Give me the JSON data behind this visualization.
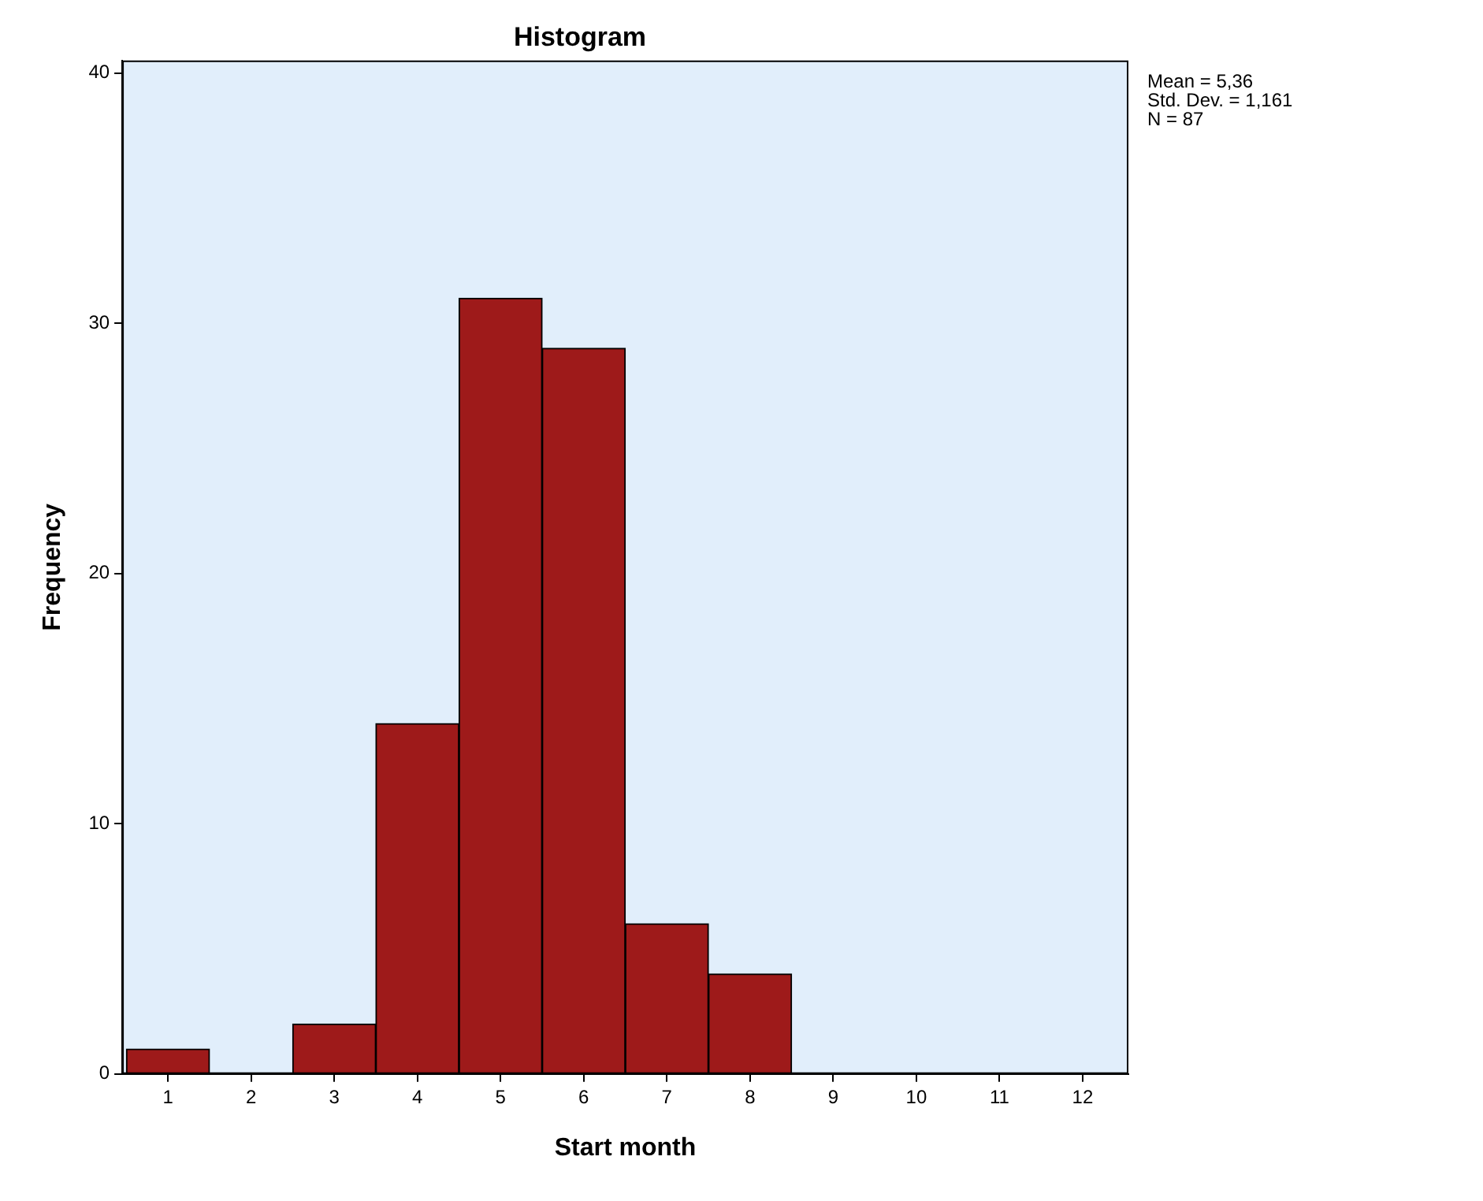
{
  "chart_data": {
    "type": "histogram",
    "title": "Histogram",
    "xlabel": "Start month",
    "ylabel": "Frequency",
    "bins": [
      0.5,
      1.5,
      2.5,
      3.5,
      4.5,
      5.5,
      6.5,
      7.5,
      8.5,
      9.5,
      10.5,
      11.5,
      12.5
    ],
    "values": [
      1,
      0,
      2,
      14,
      31,
      29,
      6,
      4,
      0,
      0,
      0,
      0
    ],
    "color": "#9e1a1a",
    "xlim": [
      0.45,
      12.55
    ],
    "xticks": [
      1,
      2,
      3,
      4,
      5,
      6,
      7,
      8,
      9,
      10,
      11,
      12
    ],
    "ylim": [
      0,
      40.5
    ],
    "yticks": [
      0,
      10,
      20,
      30,
      40
    ],
    "grid": false,
    "legend": false,
    "annotations": [
      "Mean = 5,36",
      "Std. Dev. = 1,161",
      "N = 87"
    ]
  }
}
